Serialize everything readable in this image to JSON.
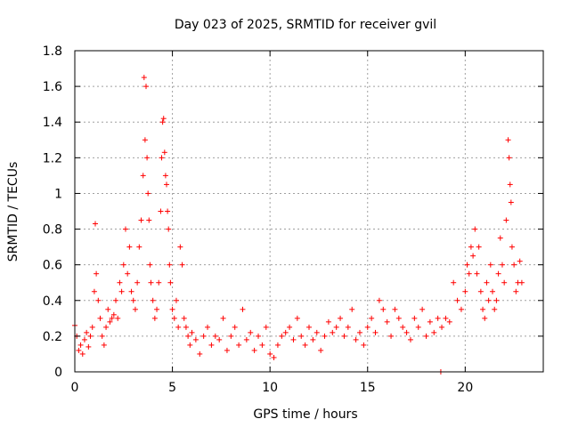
{
  "chart_data": {
    "type": "scatter",
    "title": "Day 023 of 2025, SRMTID for receiver gvil",
    "xlabel": "GPS time / hours",
    "ylabel": "SRMTID / TECUs",
    "xlim": [
      0,
      24
    ],
    "ylim": [
      0,
      1.8
    ],
    "xticks": [
      0,
      5,
      10,
      15,
      20
    ],
    "xtick_labels": [
      "0",
      "5",
      "10",
      "15",
      "20"
    ],
    "yticks": [
      0,
      0.2,
      0.4,
      0.6,
      0.8,
      1,
      1.2,
      1.4,
      1.6,
      1.8
    ],
    "ytick_labels": [
      "0",
      "0.2",
      "0.4",
      "0.6",
      "0.8",
      "1",
      "1.2",
      "1.4",
      "1.6",
      "1.8"
    ],
    "grid": true,
    "marker": "plus",
    "color": "#ff0000",
    "series": [
      {
        "name": "SRMTID",
        "x": [
          0.0,
          0.1,
          0.2,
          0.3,
          0.4,
          0.5,
          0.6,
          0.7,
          0.8,
          0.9,
          1.0,
          1.05,
          1.1,
          1.2,
          1.3,
          1.4,
          1.5,
          1.6,
          1.7,
          1.8,
          1.9,
          2.0,
          2.1,
          2.2,
          2.3,
          2.4,
          2.5,
          2.6,
          2.7,
          2.8,
          2.9,
          3.0,
          3.1,
          3.2,
          3.3,
          3.4,
          3.5,
          3.55,
          3.6,
          3.65,
          3.7,
          3.75,
          3.8,
          3.85,
          3.9,
          4.0,
          4.1,
          4.2,
          4.3,
          4.4,
          4.45,
          4.5,
          4.55,
          4.6,
          4.65,
          4.7,
          4.75,
          4.8,
          4.85,
          4.9,
          5.0,
          5.1,
          5.2,
          5.3,
          5.4,
          5.5,
          5.6,
          5.7,
          5.8,
          5.9,
          6.0,
          6.2,
          6.4,
          6.6,
          6.8,
          7.0,
          7.2,
          7.4,
          7.6,
          7.8,
          8.0,
          8.2,
          8.4,
          8.6,
          8.8,
          9.0,
          9.2,
          9.4,
          9.6,
          9.8,
          10.0,
          10.2,
          10.4,
          10.6,
          10.8,
          11.0,
          11.2,
          11.4,
          11.6,
          11.8,
          12.0,
          12.2,
          12.4,
          12.6,
          12.8,
          13.0,
          13.2,
          13.4,
          13.6,
          13.8,
          14.0,
          14.2,
          14.4,
          14.6,
          14.8,
          15.0,
          15.2,
          15.4,
          15.6,
          15.8,
          16.0,
          16.2,
          16.4,
          16.6,
          16.8,
          17.0,
          17.2,
          17.4,
          17.6,
          17.8,
          18.0,
          18.2,
          18.4,
          18.6,
          18.75,
          18.8,
          19.0,
          19.2,
          19.4,
          19.6,
          19.8,
          20.0,
          20.1,
          20.2,
          20.3,
          20.4,
          20.5,
          20.6,
          20.7,
          20.8,
          20.9,
          21.0,
          21.1,
          21.2,
          21.3,
          21.4,
          21.5,
          21.6,
          21.7,
          21.8,
          21.9,
          22.0,
          22.1,
          22.2,
          22.25,
          22.3,
          22.35,
          22.4,
          22.5,
          22.6,
          22.7,
          22.8,
          22.9
        ],
        "y": [
          0.26,
          0.2,
          0.12,
          0.15,
          0.1,
          0.18,
          0.22,
          0.14,
          0.2,
          0.25,
          0.45,
          0.83,
          0.55,
          0.4,
          0.3,
          0.2,
          0.15,
          0.25,
          0.35,
          0.28,
          0.3,
          0.32,
          0.4,
          0.3,
          0.5,
          0.45,
          0.6,
          0.8,
          0.55,
          0.7,
          0.45,
          0.4,
          0.35,
          0.5,
          0.7,
          0.85,
          1.1,
          1.65,
          1.3,
          1.6,
          1.2,
          1.0,
          0.85,
          0.6,
          0.5,
          0.4,
          0.3,
          0.35,
          0.5,
          0.9,
          1.2,
          1.4,
          1.42,
          1.23,
          1.1,
          1.05,
          0.9,
          0.8,
          0.6,
          0.5,
          0.35,
          0.3,
          0.4,
          0.25,
          0.7,
          0.6,
          0.3,
          0.25,
          0.2,
          0.15,
          0.22,
          0.18,
          0.1,
          0.2,
          0.25,
          0.15,
          0.2,
          0.18,
          0.3,
          0.12,
          0.2,
          0.25,
          0.15,
          0.35,
          0.18,
          0.22,
          0.12,
          0.2,
          0.15,
          0.25,
          0.1,
          0.08,
          0.15,
          0.2,
          0.22,
          0.25,
          0.18,
          0.3,
          0.2,
          0.15,
          0.25,
          0.18,
          0.22,
          0.12,
          0.2,
          0.28,
          0.22,
          0.25,
          0.3,
          0.2,
          0.25,
          0.35,
          0.18,
          0.22,
          0.15,
          0.25,
          0.3,
          0.22,
          0.4,
          0.35,
          0.28,
          0.2,
          0.35,
          0.3,
          0.25,
          0.22,
          0.18,
          0.3,
          0.25,
          0.35,
          0.2,
          0.28,
          0.22,
          0.3,
          0.0,
          0.25,
          0.3,
          0.28,
          0.5,
          0.4,
          0.35,
          0.45,
          0.6,
          0.55,
          0.7,
          0.65,
          0.8,
          0.55,
          0.7,
          0.45,
          0.35,
          0.3,
          0.5,
          0.4,
          0.6,
          0.45,
          0.35,
          0.4,
          0.55,
          0.75,
          0.6,
          0.5,
          0.85,
          1.3,
          1.2,
          1.05,
          0.95,
          0.7,
          0.6,
          0.45,
          0.5,
          0.62,
          0.5
        ]
      }
    ]
  }
}
